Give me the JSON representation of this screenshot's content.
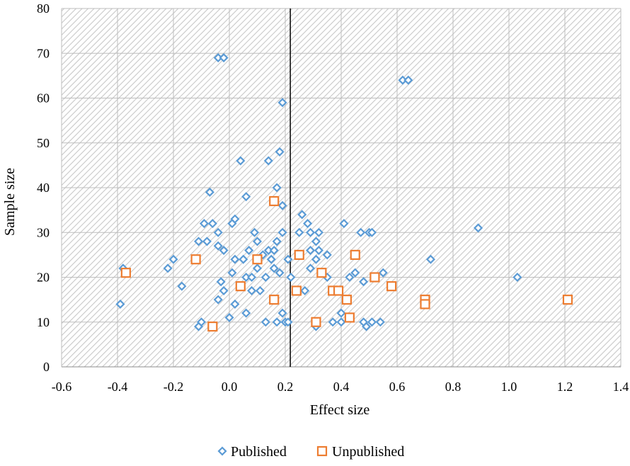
{
  "chart_data": {
    "type": "scatter",
    "title": "",
    "xlabel": "Effect size",
    "ylabel": "Sample size",
    "xlim": [
      -0.6,
      1.4
    ],
    "ylim": [
      0,
      80
    ],
    "x_ticks": [
      "-0.6",
      "-0.4",
      "-0.2",
      "0.0",
      "0.2",
      "0.4",
      "0.6",
      "0.8",
      "1.0",
      "1.2",
      "1.4"
    ],
    "y_ticks": [
      "0",
      "10",
      "20",
      "30",
      "40",
      "50",
      "60",
      "70",
      "80"
    ],
    "grid": true,
    "background": "diagonal-hatch",
    "legend_position": "bottom",
    "reference_line_x": 0.218,
    "colors": {
      "published": "#5b9bd5",
      "unpublished": "#ed7d31",
      "reference_line": "#000000"
    },
    "series": [
      {
        "name": "Published",
        "marker": "diamond",
        "points": [
          [
            -0.04,
            69
          ],
          [
            -0.02,
            69
          ],
          [
            0.19,
            59
          ],
          [
            0.62,
            64
          ],
          [
            0.64,
            64
          ],
          [
            0.18,
            48
          ],
          [
            0.04,
            46
          ],
          [
            0.14,
            46
          ],
          [
            0.17,
            40
          ],
          [
            -0.07,
            39
          ],
          [
            0.06,
            38
          ],
          [
            0.19,
            36
          ],
          [
            -0.09,
            32
          ],
          [
            -0.06,
            32
          ],
          [
            0.01,
            32
          ],
          [
            0.02,
            33
          ],
          [
            0.26,
            34
          ],
          [
            0.28,
            32
          ],
          [
            0.41,
            32
          ],
          [
            0.89,
            31
          ],
          [
            -0.04,
            30
          ],
          [
            0.09,
            30
          ],
          [
            0.19,
            30
          ],
          [
            0.25,
            30
          ],
          [
            0.29,
            30
          ],
          [
            0.32,
            30
          ],
          [
            0.47,
            30
          ],
          [
            0.5,
            30
          ],
          [
            0.51,
            30
          ],
          [
            -0.11,
            28
          ],
          [
            -0.08,
            28
          ],
          [
            0.1,
            28
          ],
          [
            0.17,
            28
          ],
          [
            0.31,
            28
          ],
          [
            -0.04,
            27
          ],
          [
            -0.02,
            26
          ],
          [
            0.07,
            26
          ],
          [
            0.12,
            25
          ],
          [
            0.14,
            26
          ],
          [
            0.16,
            26
          ],
          [
            0.29,
            26
          ],
          [
            0.32,
            26
          ],
          [
            0.35,
            25
          ],
          [
            -0.2,
            24
          ],
          [
            0.02,
            24
          ],
          [
            0.05,
            24
          ],
          [
            0.15,
            24
          ],
          [
            0.21,
            24
          ],
          [
            0.31,
            24
          ],
          [
            0.72,
            24
          ],
          [
            -0.38,
            22
          ],
          [
            -0.22,
            22
          ],
          [
            0.1,
            22
          ],
          [
            0.16,
            22
          ],
          [
            0.29,
            22
          ],
          [
            0.01,
            21
          ],
          [
            0.06,
            20
          ],
          [
            0.08,
            20
          ],
          [
            0.13,
            20
          ],
          [
            0.18,
            21
          ],
          [
            0.22,
            20
          ],
          [
            0.35,
            20
          ],
          [
            0.43,
            20
          ],
          [
            0.45,
            21
          ],
          [
            0.55,
            21
          ],
          [
            1.03,
            20
          ],
          [
            -0.03,
            19
          ],
          [
            0.48,
            19
          ],
          [
            -0.17,
            18
          ],
          [
            -0.02,
            17
          ],
          [
            0.08,
            17
          ],
          [
            0.11,
            17
          ],
          [
            0.27,
            17
          ],
          [
            -0.04,
            15
          ],
          [
            0.02,
            14
          ],
          [
            -0.39,
            14
          ],
          [
            0.06,
            12
          ],
          [
            0.19,
            12
          ],
          [
            0.4,
            12
          ],
          [
            -0.1,
            10
          ],
          [
            0.13,
            10
          ],
          [
            0.17,
            10
          ],
          [
            0.2,
            10
          ],
          [
            0.21,
            10
          ],
          [
            0.31,
            9
          ],
          [
            0.37,
            10
          ],
          [
            0.4,
            10
          ],
          [
            0.48,
            10
          ],
          [
            0.49,
            9
          ],
          [
            0.51,
            10
          ],
          [
            0.54,
            10
          ],
          [
            -0.11,
            9
          ],
          [
            0.0,
            11
          ]
        ]
      },
      {
        "name": "Unpublished",
        "marker": "square",
        "points": [
          [
            0.16,
            37
          ],
          [
            -0.12,
            24
          ],
          [
            0.1,
            24
          ],
          [
            0.25,
            25
          ],
          [
            0.45,
            25
          ],
          [
            -0.37,
            21
          ],
          [
            0.33,
            21
          ],
          [
            0.52,
            20
          ],
          [
            0.04,
            18
          ],
          [
            0.58,
            18
          ],
          [
            0.24,
            17
          ],
          [
            0.37,
            17
          ],
          [
            0.39,
            17
          ],
          [
            0.16,
            15
          ],
          [
            0.42,
            15
          ],
          [
            0.7,
            15
          ],
          [
            0.7,
            14
          ],
          [
            1.21,
            15
          ],
          [
            0.31,
            10
          ],
          [
            0.43,
            11
          ],
          [
            -0.06,
            9
          ]
        ]
      }
    ]
  }
}
